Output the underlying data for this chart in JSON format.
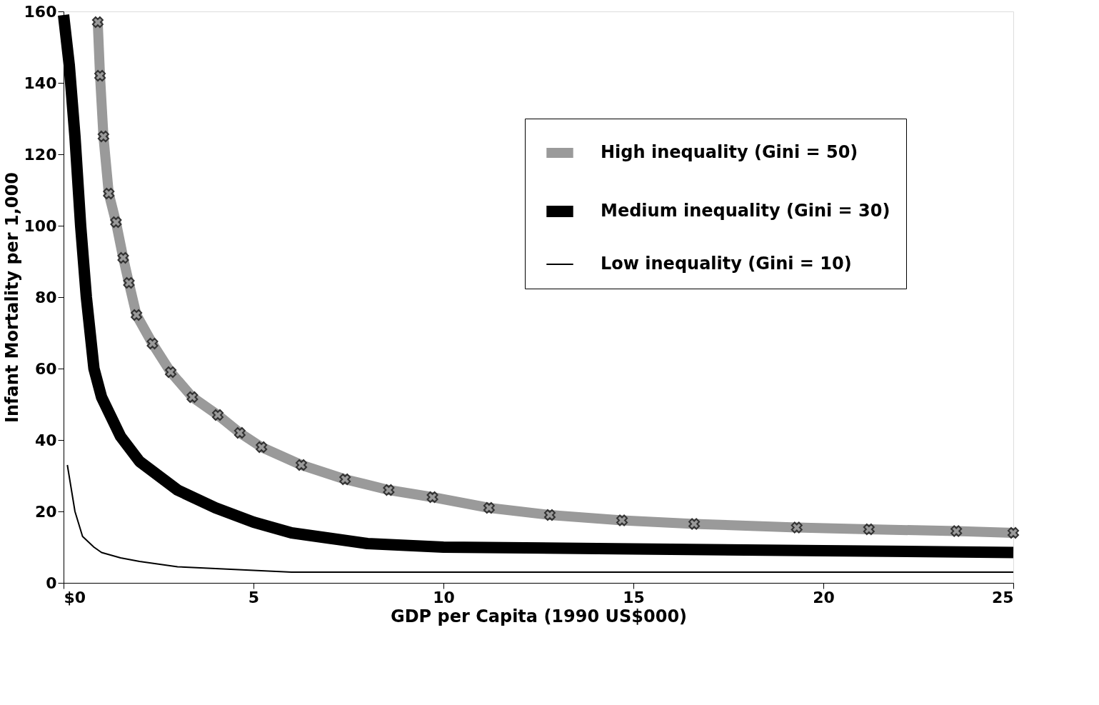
{
  "chart_data": {
    "type": "line",
    "xlabel": "GDP per Capita (1990 US$000)",
    "ylabel": "Infant Mortality per 1,000",
    "xlim": [
      0,
      25
    ],
    "xticks": [
      {
        "value": 0,
        "label": "$0"
      },
      5,
      10,
      15,
      20,
      25
    ],
    "ylim": [
      0,
      160
    ],
    "yticks": [
      0,
      20,
      40,
      60,
      80,
      100,
      120,
      140,
      160
    ],
    "grid": false,
    "legend": "top right",
    "series": [
      {
        "name": "High inequality (Gini = 50)",
        "color": "#9a9a9a",
        "marker": "cross",
        "x": [
          0.9,
          0.96,
          1.05,
          1.19,
          1.38,
          1.57,
          1.72,
          1.92,
          2.34,
          2.82,
          3.39,
          4.06,
          4.64,
          5.21,
          6.26,
          7.41,
          8.56,
          9.71,
          11.2,
          12.8,
          14.7,
          16.6,
          19.3,
          21.2,
          23.5,
          25
        ],
        "values": [
          157,
          142,
          125,
          109,
          101,
          91,
          84,
          75,
          67,
          59,
          52,
          47,
          42,
          38,
          33,
          29,
          26,
          24,
          21,
          19,
          17.5,
          16.5,
          15.5,
          15,
          14.5,
          14
        ]
      },
      {
        "name": "Medium inequality (Gini = 30)",
        "color": "#000000",
        "marker": "none",
        "x": [
          0,
          0.15,
          0.3,
          0.45,
          0.6,
          0.8,
          1,
          1.5,
          2,
          3,
          4,
          5,
          6,
          7,
          8,
          10,
          15,
          20,
          25
        ],
        "values": [
          159,
          145,
          125,
          100,
          80,
          60,
          52,
          41,
          34,
          26,
          21,
          17,
          14,
          12.5,
          11,
          10,
          9.5,
          9,
          8.5
        ]
      },
      {
        "name": "Low inequality (Gini = 10)",
        "color": "#000000",
        "marker": "none",
        "x": [
          0.1,
          0.3,
          0.5,
          0.8,
          1,
          1.5,
          2,
          3,
          4,
          5,
          6,
          10,
          15,
          25
        ],
        "values": [
          33,
          20,
          13,
          10,
          8.5,
          7,
          6,
          4.5,
          4,
          3.5,
          3,
          3,
          3,
          3
        ]
      }
    ]
  }
}
